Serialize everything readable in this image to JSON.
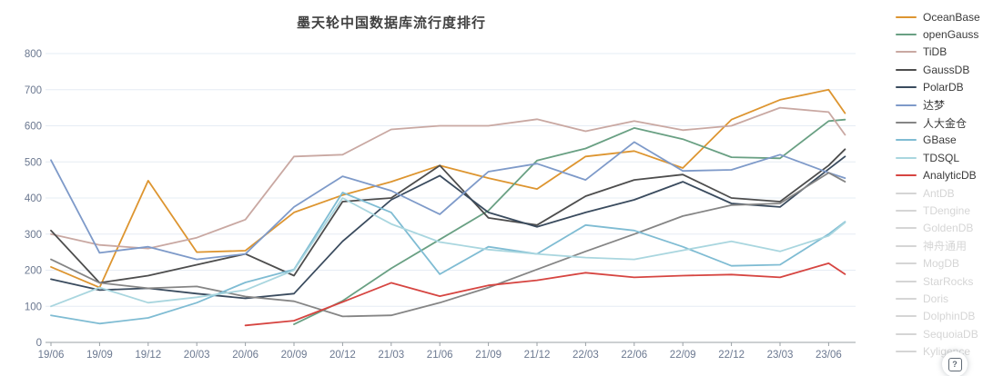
{
  "title": "墨天轮中国数据库流行度排行",
  "help_button": {
    "glyph": "?"
  },
  "y_axis": {
    "tick_labels": [
      "0",
      "100",
      "200",
      "300",
      "400",
      "500",
      "600",
      "700",
      "800"
    ],
    "min": 0,
    "max": 800
  },
  "chart_data": {
    "type": "line",
    "title": "墨天轮中国数据库流行度排行",
    "x_labels": [
      "19/06",
      "19/09",
      "19/12",
      "20/03",
      "20/06",
      "20/09",
      "20/12",
      "21/03",
      "21/06",
      "21/09",
      "21/12",
      "22/03",
      "22/06",
      "22/09",
      "22/12",
      "23/03",
      "23/06"
    ],
    "x_note": "monthly data sampled quarterly; lines extend one month past the last tick",
    "ylim": [
      0,
      800
    ],
    "grid": true,
    "legend_position": "right",
    "series": [
      {
        "name": "OceanBase",
        "color": "#dd9530",
        "values": [
          209,
          152,
          448,
          250,
          254,
          360,
          408,
          445,
          490,
          455,
          425,
          515,
          530,
          483,
          617,
          672,
          700,
          635
        ]
      },
      {
        "name": "openGauss",
        "color": "#69a083",
        "values": [
          null,
          null,
          null,
          null,
          null,
          50,
          115,
          205,
          285,
          365,
          504,
          537,
          594,
          563,
          513,
          510,
          613,
          617
        ]
      },
      {
        "name": "TiDB",
        "color": "#c9a8a2",
        "values": [
          300,
          270,
          260,
          290,
          340,
          515,
          520,
          590,
          600,
          600,
          618,
          585,
          613,
          588,
          600,
          650,
          638,
          575
        ]
      },
      {
        "name": "GaussDB",
        "color": "#4d4d4d",
        "values": [
          310,
          165,
          185,
          215,
          245,
          185,
          390,
          400,
          490,
          345,
          325,
          405,
          450,
          465,
          400,
          390,
          490,
          535
        ]
      },
      {
        "name": "PolarDB",
        "color": "#3a4b5e",
        "values": [
          175,
          145,
          150,
          135,
          122,
          135,
          280,
          395,
          462,
          360,
          320,
          360,
          395,
          445,
          385,
          375,
          480,
          515
        ]
      },
      {
        "name": "达梦",
        "color": "#7e9ac9",
        "values": [
          505,
          248,
          265,
          230,
          245,
          375,
          460,
          420,
          355,
          473,
          495,
          450,
          555,
          475,
          478,
          520,
          470,
          455
        ]
      },
      {
        "name": "人大金仓",
        "color": "#858585",
        "values": [
          230,
          165,
          150,
          155,
          127,
          114,
          72,
          75,
          110,
          152,
          202,
          252,
          300,
          350,
          380,
          385,
          470,
          445
        ]
      },
      {
        "name": "GBase",
        "color": "#7fbcd3",
        "values": [
          75,
          52,
          68,
          110,
          166,
          202,
          415,
          360,
          189,
          265,
          245,
          325,
          310,
          265,
          212,
          215,
          300,
          334
        ]
      },
      {
        "name": "TDSQL",
        "color": "#a9d6df",
        "values": [
          100,
          152,
          110,
          125,
          145,
          200,
          400,
          328,
          278,
          257,
          245,
          235,
          230,
          255,
          280,
          252,
          295,
          332
        ]
      },
      {
        "name": "AnalyticDB",
        "color": "#d64541",
        "values": [
          null,
          null,
          null,
          null,
          47,
          60,
          112,
          165,
          128,
          158,
          172,
          193,
          180,
          185,
          188,
          180,
          219,
          189
        ]
      }
    ],
    "inactive_legend": [
      "AntDB",
      "TDengine",
      "GoldenDB",
      "神舟通用",
      "MogDB",
      "StarRocks",
      "Doris",
      "DolphinDB",
      "SequoiaDB",
      "Kyligence"
    ]
  },
  "colors": {
    "grid_line": "#e6ecf4",
    "axis_line": "#9aa0a6",
    "axis_label": "#6b7890",
    "legend_active_text": "#3a3a3a",
    "legend_inactive": "#d5d5d5"
  }
}
